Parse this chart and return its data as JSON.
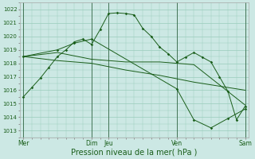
{
  "background_color": "#cce8e4",
  "grid_color": "#99ccbb",
  "line_color": "#1a5e1a",
  "xlabel": "Pression niveau de la mer( hPa )",
  "ylim": [
    1012.5,
    1022.5
  ],
  "yticks": [
    1013,
    1014,
    1015,
    1016,
    1017,
    1018,
    1019,
    1020,
    1021,
    1022
  ],
  "xtick_labels": [
    "Mer",
    "Dim",
    "Jeu",
    "Ven",
    "Sam"
  ],
  "xtick_positions": [
    0,
    4,
    5,
    9,
    13
  ],
  "vline_positions": [
    0,
    4,
    5,
    9,
    13
  ],
  "series1_x": [
    0,
    0.5,
    1,
    1.5,
    2,
    2.5,
    3,
    3.5,
    4,
    4.5,
    5,
    5.5,
    6,
    6.5,
    7,
    7.5,
    8,
    8.5,
    9,
    9.5,
    10,
    10.5,
    11,
    11.5,
    12,
    12.5,
    13
  ],
  "series1_y": [
    1015.5,
    1016.2,
    1016.9,
    1017.7,
    1018.5,
    1019.0,
    1019.6,
    1019.8,
    1019.4,
    1020.5,
    1021.7,
    1021.75,
    1021.7,
    1021.6,
    1020.6,
    1020.0,
    1019.2,
    1018.7,
    1018.1,
    1018.45,
    1018.8,
    1018.45,
    1018.1,
    1017.0,
    1015.9,
    1013.8,
    1014.8
  ],
  "series2_x": [
    0,
    2,
    4,
    6,
    8,
    10,
    12,
    13
  ],
  "series2_y": [
    1018.5,
    1018.8,
    1018.3,
    1018.1,
    1018.1,
    1017.9,
    1015.9,
    1014.9
  ],
  "series3_x": [
    0,
    2,
    4,
    6,
    8,
    10,
    12,
    13
  ],
  "series3_y": [
    1018.5,
    1018.2,
    1018.0,
    1017.5,
    1017.1,
    1016.6,
    1016.2,
    1016.0
  ],
  "series4_x": [
    0,
    2,
    3,
    4,
    9,
    10,
    11,
    12,
    13
  ],
  "series4_y": [
    1018.5,
    1019.0,
    1019.5,
    1019.8,
    1016.1,
    1013.8,
    1013.2,
    1013.9,
    1014.6
  ],
  "xlabel_fontsize": 7,
  "ytick_fontsize": 5,
  "xtick_fontsize": 5.5
}
